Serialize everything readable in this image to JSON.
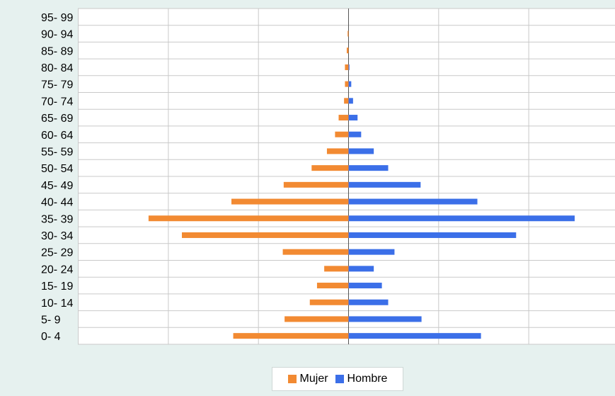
{
  "chart_data": {
    "type": "bar",
    "orientation": "horizontal",
    "subtype": "population-pyramid",
    "categories": [
      "0- 4",
      "5- 9",
      "10- 14",
      "15- 19",
      "20- 24",
      "25- 29",
      "30- 34",
      "35- 39",
      "40- 44",
      "45- 49",
      "50- 54",
      "55- 59",
      "60- 64",
      "65- 69",
      "70- 74",
      "75- 79",
      "80- 84",
      "85- 89",
      "90- 94",
      "95- 99"
    ],
    "series": [
      {
        "name": "Mujer",
        "color": "#f28a32",
        "side": "left",
        "values": [
          1.28,
          0.71,
          0.43,
          0.35,
          0.27,
          0.73,
          1.85,
          2.22,
          1.3,
          0.72,
          0.41,
          0.24,
          0.15,
          0.11,
          0.05,
          0.04,
          0.04,
          0.02,
          0.01,
          0.0
        ]
      },
      {
        "name": "Hombre",
        "color": "#3b6fe8",
        "side": "right",
        "values": [
          1.47,
          0.81,
          0.44,
          0.37,
          0.28,
          0.51,
          1.86,
          2.51,
          1.43,
          0.8,
          0.44,
          0.28,
          0.14,
          0.1,
          0.05,
          0.03,
          0.01,
          0.0,
          0.0,
          0.0
        ]
      }
    ],
    "xlim": [
      -3,
      3
    ],
    "grid": true,
    "legend": "bottom-center",
    "title": "",
    "xlabel": "",
    "ylabel": ""
  },
  "legend": {
    "mujer_label": "Mujer",
    "hombre_label": "Hombre"
  }
}
